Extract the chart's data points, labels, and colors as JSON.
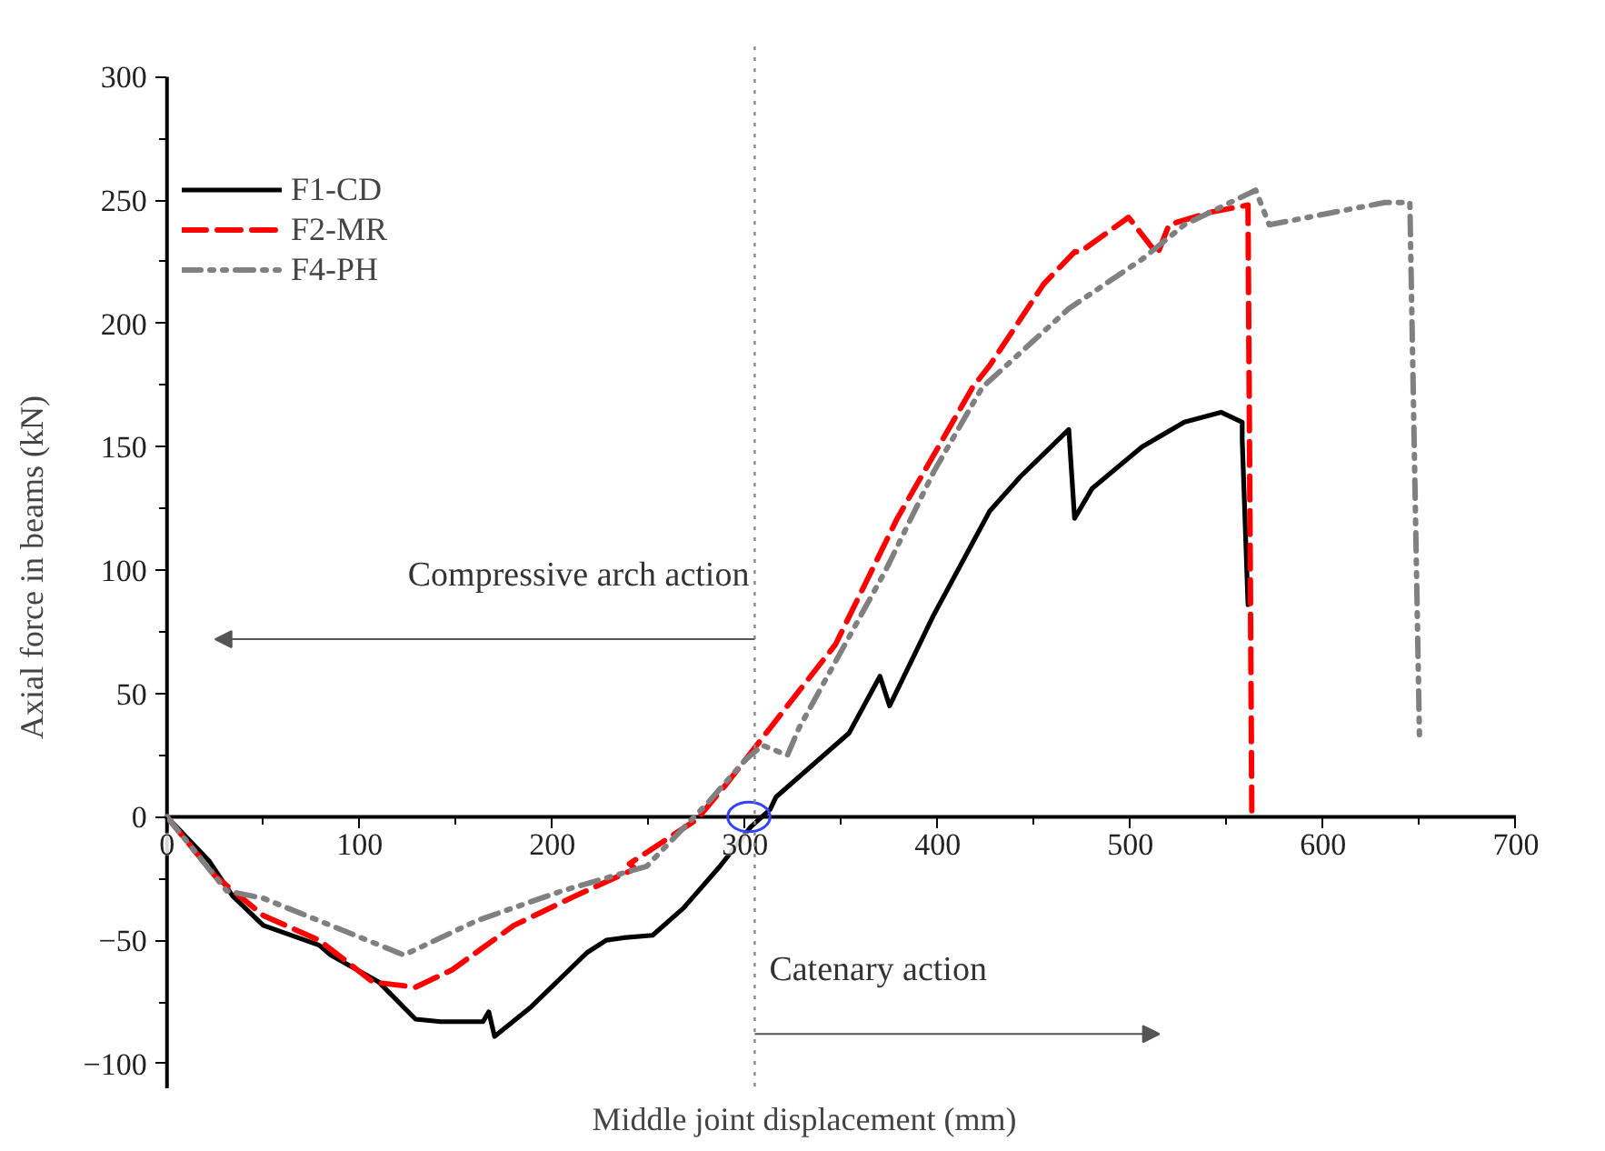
{
  "chart_data": {
    "type": "line",
    "xlabel": "Middle joint displacement (mm)",
    "ylabel": "Axial force in beams (kN)",
    "xlim": [
      0,
      700
    ],
    "ylim": [
      -110,
      300
    ],
    "xticks": [
      0,
      100,
      200,
      300,
      400,
      500,
      600,
      700
    ],
    "yticks": [
      -100,
      -50,
      0,
      50,
      100,
      150,
      200,
      250,
      300
    ],
    "grid": false,
    "legend": "top left",
    "marker": "none",
    "ref_lines": [
      {
        "axis": "x",
        "value": 305,
        "label": null,
        "color": "#888888",
        "line_style": "dotted"
      }
    ],
    "annotations": [
      "Compressive arch action",
      "Catenary action"
    ],
    "series": [
      {
        "name": "F1-CD",
        "color": "#000000",
        "line_style": "solid",
        "x": [
          0,
          22,
          34,
          50,
          79,
          85,
          110,
          129,
          142,
          164,
          167,
          170,
          189,
          218,
          228,
          237,
          252,
          268,
          287,
          303,
          313,
          316,
          354,
          370,
          375,
          398,
          427,
          443,
          468,
          471,
          480,
          506,
          528,
          547,
          558,
          558,
          561
        ],
        "values": [
          0,
          -18,
          -32,
          -44,
          -52,
          -56,
          -67,
          -82,
          -83,
          -83,
          -79,
          -89,
          -77,
          -55,
          -50,
          -49,
          -48,
          -37,
          -20,
          -4,
          3,
          8,
          34,
          57,
          45,
          82,
          124,
          138,
          157,
          121,
          133,
          150,
          160,
          164,
          160,
          153,
          86
        ]
      },
      {
        "name": "F2-MR",
        "color": "#ff0000",
        "line_style": "dashed",
        "x": [
          0,
          25,
          50,
          79,
          107,
          129,
          148,
          180,
          212,
          243,
          240,
          275,
          290,
          313,
          347,
          379,
          418,
          427,
          455,
          471,
          474,
          499,
          514,
          520,
          541,
          561,
          563
        ],
        "values": [
          0,
          -24,
          -40,
          -50,
          -67,
          -69,
          -62,
          -44,
          -32,
          -21,
          -19,
          -1,
          13,
          36,
          70,
          121,
          174,
          183,
          216,
          229,
          229,
          243,
          228,
          240,
          245,
          248,
          0
        ]
      },
      {
        "name": "F4-PH",
        "color": "#808080",
        "line_style": "dashdot",
        "x": [
          0,
          31,
          50,
          85,
          123,
          161,
          205,
          249,
          281,
          300,
          309,
          322,
          328,
          373,
          398,
          423,
          468,
          506,
          528,
          565,
          572,
          632,
          645,
          650
        ],
        "values": [
          0,
          -30,
          -33,
          -44,
          -56,
          -42,
          -30,
          -20,
          6,
          23,
          29,
          25,
          36,
          100,
          140,
          174,
          206,
          226,
          240,
          254,
          240,
          249,
          249,
          32
        ]
      }
    ]
  }
}
